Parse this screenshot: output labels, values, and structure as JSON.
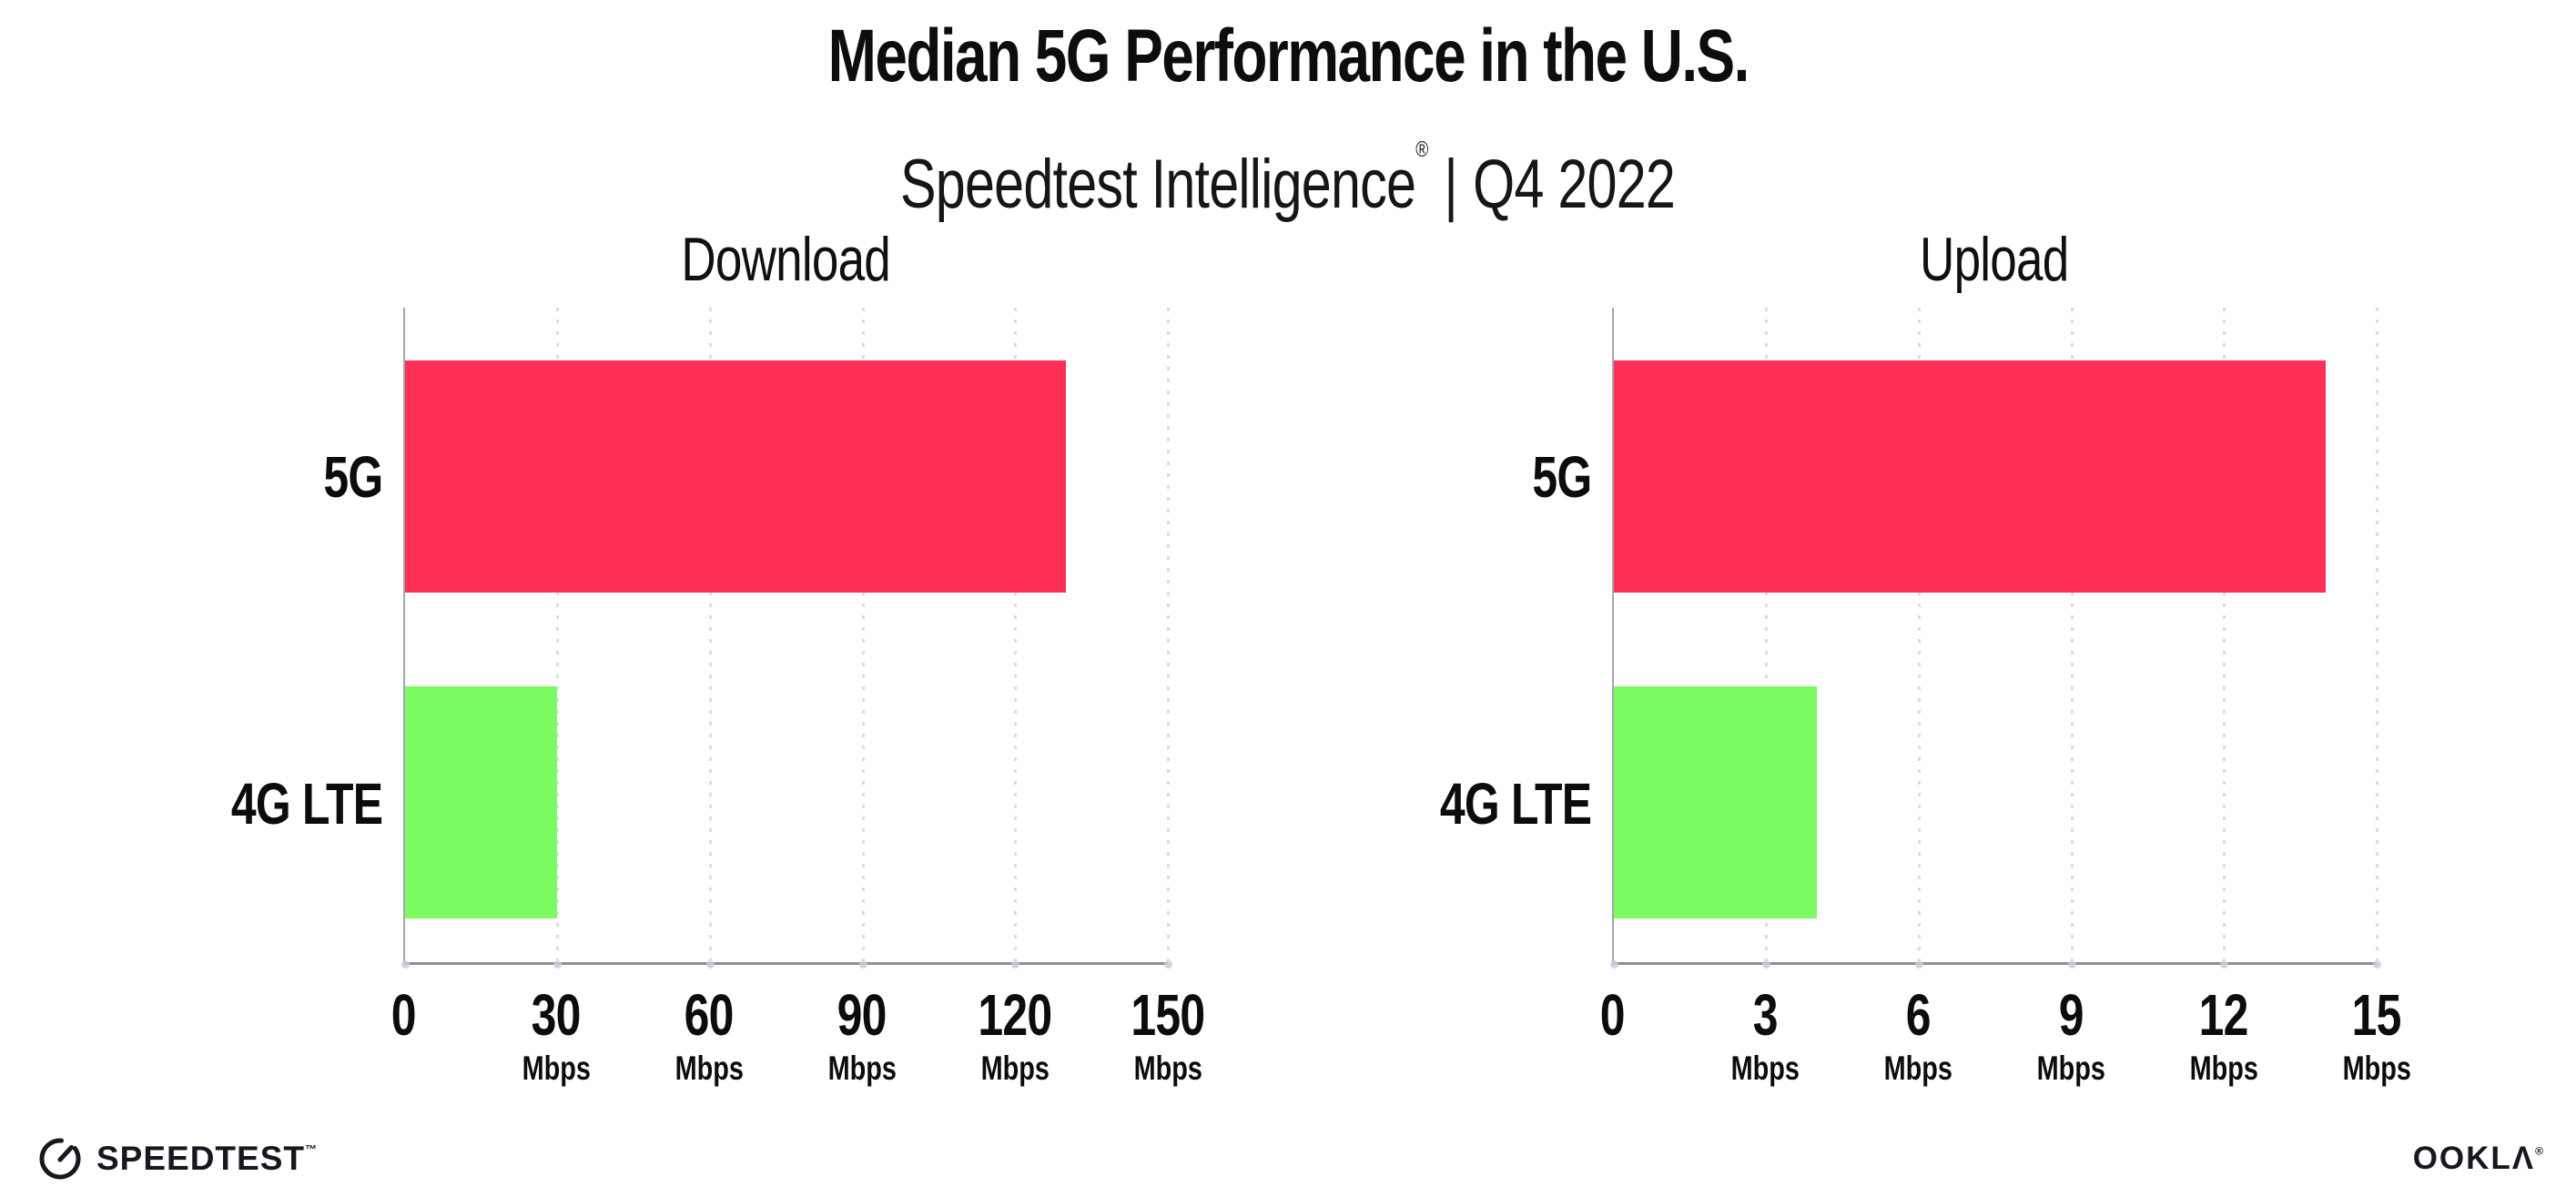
{
  "header": {
    "title": "Median 5G Performance in the U.S.",
    "subtitle_brand": "Speedtest Intelligence",
    "subtitle_reg": "®",
    "subtitle_sep": "|",
    "subtitle_period": "Q4 2022"
  },
  "chart_data": [
    {
      "type": "bar",
      "orientation": "horizontal",
      "title": "Download",
      "categories": [
        "5G",
        "4G LTE"
      ],
      "values": [
        130,
        30
      ],
      "unit": "Mbps",
      "xlim": [
        0,
        150
      ],
      "xticks": [
        0,
        30,
        60,
        90,
        120,
        150
      ],
      "bar_colors": [
        "#FF3056",
        "#7CFC62"
      ],
      "grid": "dotted-vertical-gridlines",
      "legend": "none"
    },
    {
      "type": "bar",
      "orientation": "horizontal",
      "title": "Upload",
      "categories": [
        "5G",
        "4G LTE"
      ],
      "values": [
        14,
        4
      ],
      "unit": "Mbps",
      "xlim": [
        0,
        15
      ],
      "xticks": [
        0,
        3,
        6,
        9,
        12,
        15
      ],
      "bar_colors": [
        "#FF3056",
        "#7CFC62"
      ],
      "grid": "dotted-vertical-gridlines",
      "legend": "none"
    }
  ],
  "footer": {
    "speedtest_logo_text": "SPEEDTEST",
    "speedtest_tm": "™",
    "ookla_logo_text": "OOKLΛ",
    "ookla_reg": "®"
  },
  "colors": {
    "bar_5g_pink": "#FF3056",
    "bar_4g_green": "#7CFC62",
    "axis_left": "#a6a6ac",
    "axis_bottom": "#8f8f8f",
    "gridline": "#dcdce6",
    "text": "#0f0f0f"
  }
}
